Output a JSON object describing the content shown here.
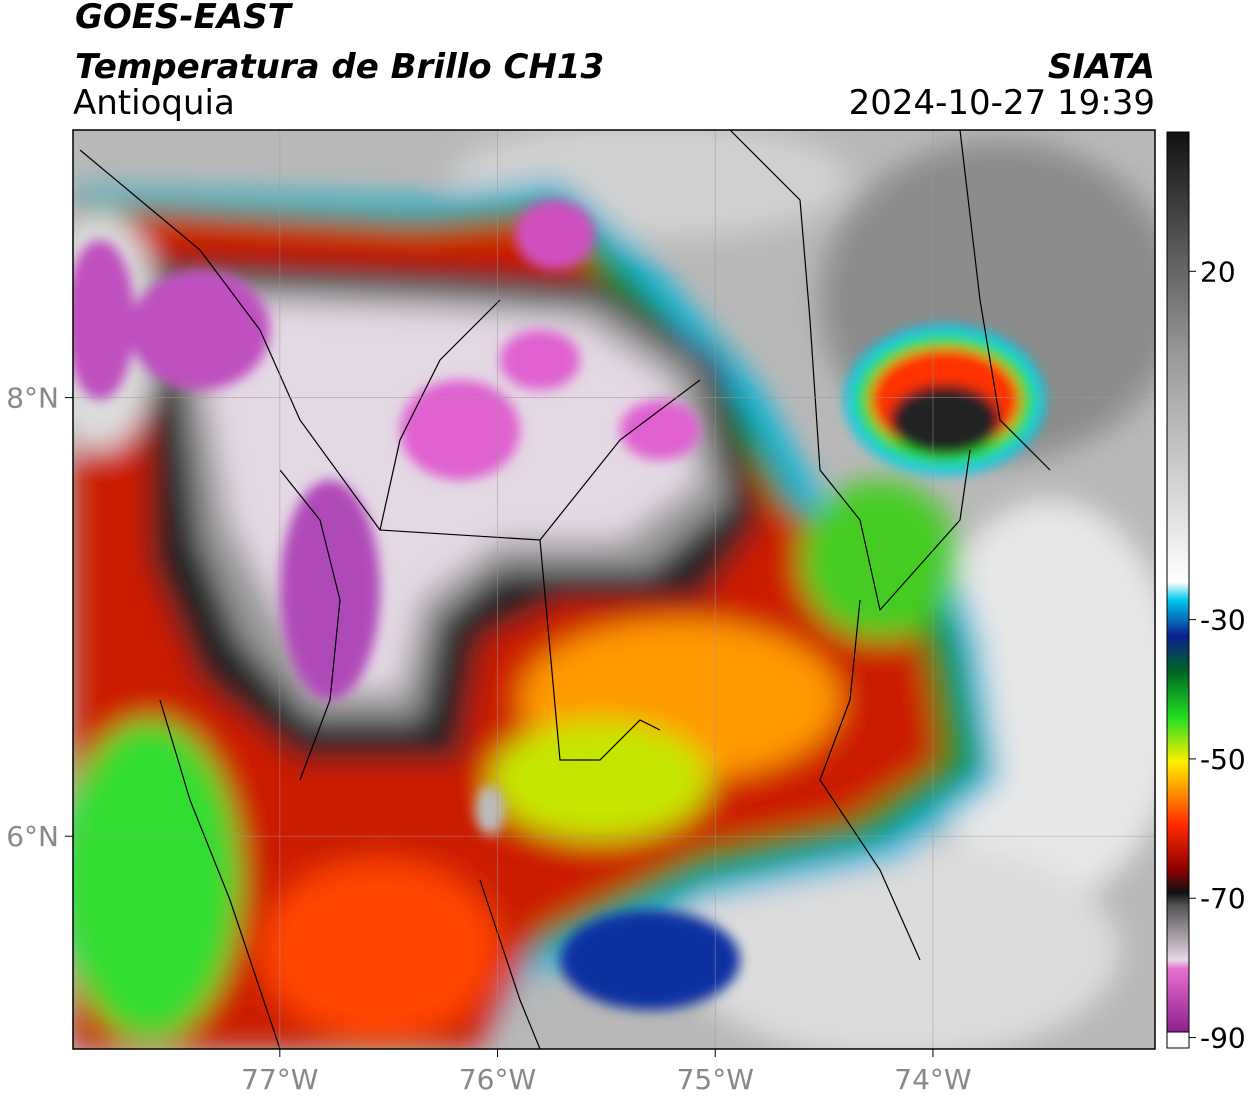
{
  "header": {
    "title": "GOES-EAST",
    "subtitle": "Temperatura de Brillo CH13",
    "region": "Antioquia",
    "source": "SIATA",
    "datetime": "2024-10-27 19:39"
  },
  "map": {
    "xlim": [
      -77.95,
      -72.98
    ],
    "ylim": [
      5.03,
      9.22
    ],
    "xticks": [
      {
        "value": -77,
        "label": "77°W"
      },
      {
        "value": -76,
        "label": "76°W"
      },
      {
        "value": -75,
        "label": "75°W"
      },
      {
        "value": -74,
        "label": "74°W"
      }
    ],
    "yticks": [
      {
        "value": 8,
        "label": "8°N"
      },
      {
        "value": 6,
        "label": "6°N"
      }
    ],
    "grid": true
  },
  "colorbar": {
    "lim": [
      -91.5,
      40
    ],
    "ticks": [
      -90,
      -70,
      -50,
      -30,
      20
    ]
  }
}
